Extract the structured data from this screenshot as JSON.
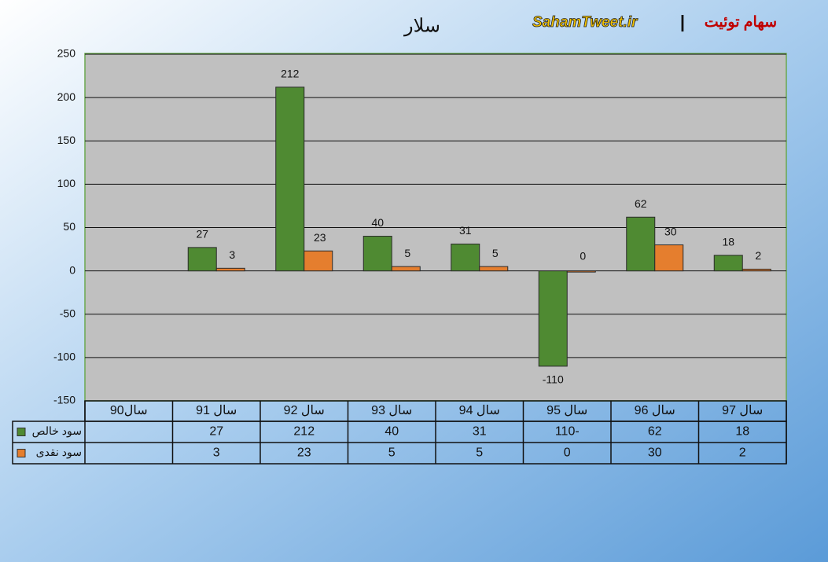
{
  "chart_data": {
    "type": "bar",
    "title": "سلار",
    "annotations": [
      "سهام توئیت",
      "|",
      "SahamTweet.ir"
    ],
    "categories": [
      "سال90",
      "سال 91",
      "سال 92",
      "سال 93",
      "سال 94",
      "سال 95",
      "سال 96",
      "سال 97"
    ],
    "series": [
      {
        "name": "سود خالص",
        "color": "#4f8a32",
        "values": [
          null,
          27,
          212,
          40,
          31,
          -110,
          62,
          18
        ]
      },
      {
        "name": "سود نقدی",
        "color": "#e57e2e",
        "values": [
          null,
          3,
          23,
          5,
          5,
          0,
          30,
          2
        ]
      }
    ],
    "ylim": [
      -150,
      250
    ],
    "yticks": [
      -150,
      -100,
      -50,
      0,
      50,
      100,
      150,
      200,
      250
    ],
    "grid": true
  }
}
